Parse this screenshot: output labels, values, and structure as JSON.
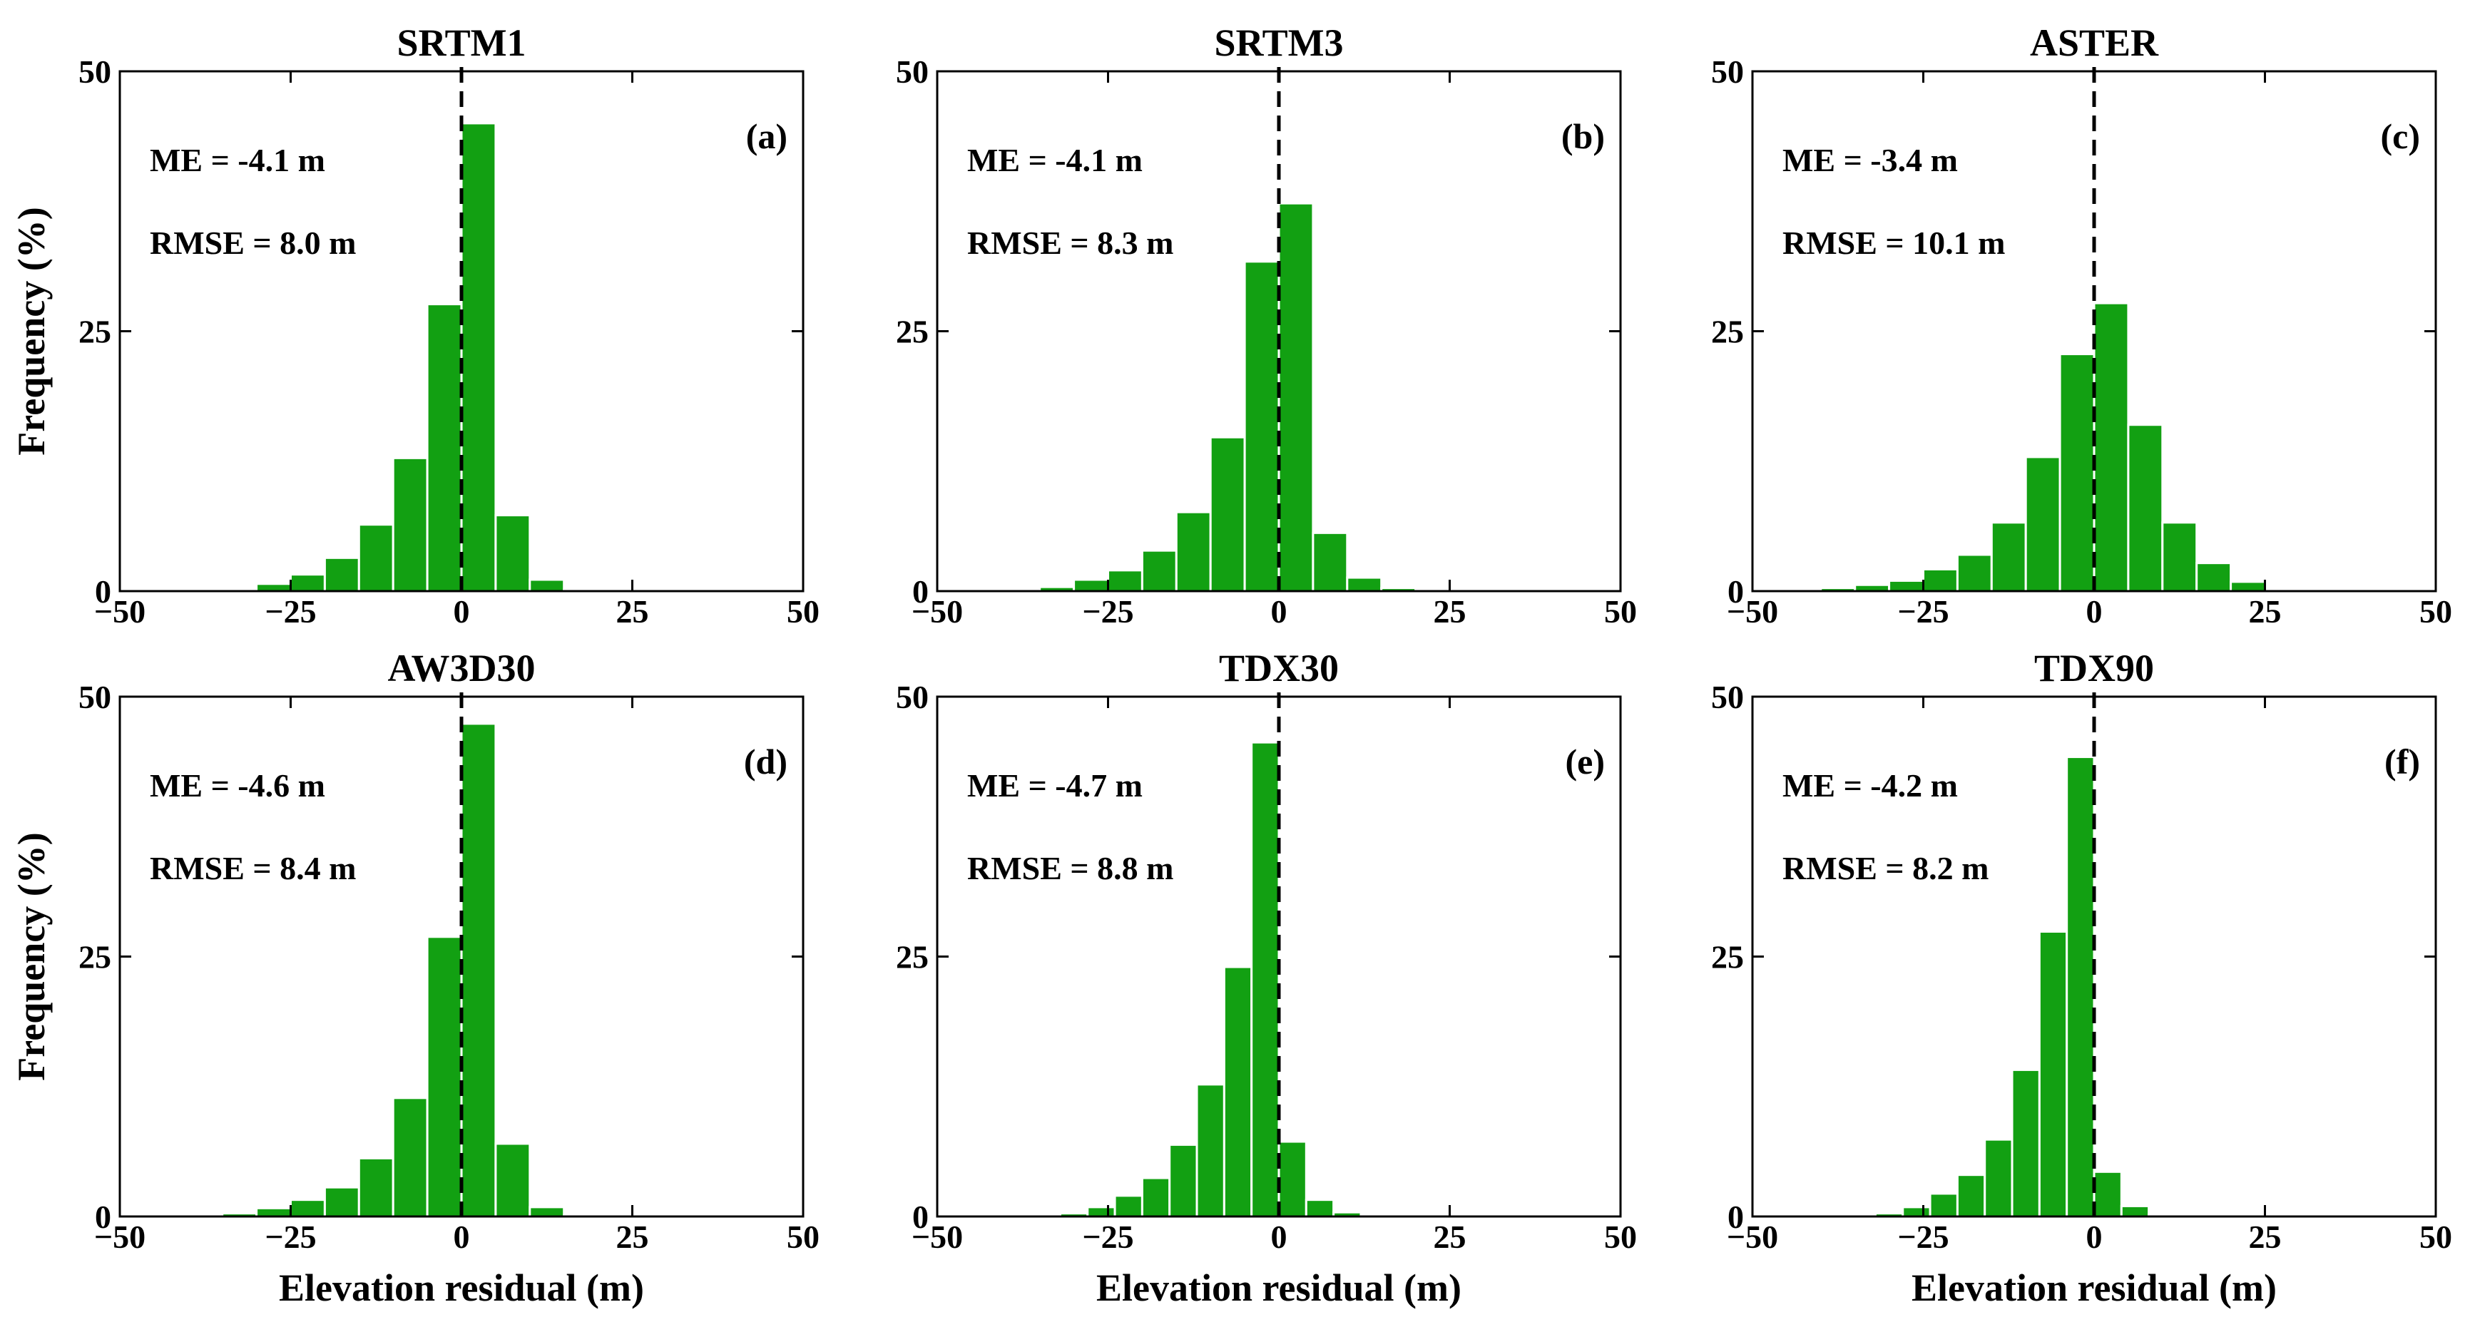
{
  "chart_data": [
    {
      "type": "bar",
      "title": "SRTM1",
      "panel_label": "(a)",
      "annotations": [
        "ME = -4.1 m",
        "RMSE = 8.0 m"
      ],
      "xlabel": "",
      "ylabel": "Frequency (%)",
      "xlim": [
        -50,
        50
      ],
      "ylim": [
        0,
        50
      ],
      "xticks": [
        -50,
        -25,
        0,
        25,
        50
      ],
      "yticks": [
        0,
        25,
        50
      ],
      "xtick_labels": [
        "−50",
        "−25",
        "0",
        "25",
        "50"
      ],
      "ytick_labels": [
        "0",
        "25",
        "50"
      ],
      "bin_width": 5,
      "bin_centers": [
        -37.5,
        -32.5,
        -27.5,
        -22.5,
        -17.5,
        -12.5,
        -7.5,
        -2.5,
        2.5,
        7.5,
        12.5,
        17.5,
        22.5
      ],
      "values": [
        0.1,
        0.2,
        0.7,
        1.6,
        3.2,
        6.4,
        12.8,
        27.6,
        45.0,
        7.3,
        1.1,
        0.1,
        0.0
      ],
      "mean_line_x": 0
    },
    {
      "type": "bar",
      "title": "SRTM3",
      "panel_label": "(b)",
      "annotations": [
        "ME = -4.1 m",
        "RMSE = 8.3 m"
      ],
      "xlabel": "",
      "ylabel": "",
      "xlim": [
        -50,
        50
      ],
      "ylim": [
        0,
        50
      ],
      "xticks": [
        -50,
        -25,
        0,
        25,
        50
      ],
      "yticks": [
        0,
        25,
        50
      ],
      "xtick_labels": [
        "−50",
        "−25",
        "0",
        "25",
        "50"
      ],
      "ytick_labels": [
        "0",
        "25",
        "50"
      ],
      "bin_width": 5,
      "bin_centers": [
        -37.5,
        -32.5,
        -27.5,
        -22.5,
        -17.5,
        -12.5,
        -7.5,
        -2.5,
        2.5,
        7.5,
        12.5,
        17.5,
        22.5
      ],
      "values": [
        0.1,
        0.4,
        1.1,
        2.0,
        3.9,
        7.6,
        14.8,
        31.7,
        37.3,
        5.6,
        1.3,
        0.3,
        0.0
      ],
      "mean_line_x": 0
    },
    {
      "type": "bar",
      "title": "ASTER",
      "panel_label": "(c)",
      "annotations": [
        "ME = -3.4 m",
        "RMSE = 10.1 m"
      ],
      "xlabel": "",
      "ylabel": "",
      "xlim": [
        -50,
        50
      ],
      "ylim": [
        0,
        50
      ],
      "xticks": [
        -50,
        -25,
        0,
        25,
        50
      ],
      "yticks": [
        0,
        25,
        50
      ],
      "xtick_labels": [
        "−50",
        "−25",
        "0",
        "25",
        "50"
      ],
      "ytick_labels": [
        "0",
        "25",
        "50"
      ],
      "bin_width": 5,
      "bin_centers": [
        -42.5,
        -37.5,
        -32.5,
        -27.5,
        -22.5,
        -17.5,
        -12.5,
        -7.5,
        -2.5,
        2.5,
        7.5,
        12.5,
        17.5,
        22.5,
        27.5
      ],
      "values": [
        0.1,
        0.3,
        0.6,
        1.0,
        2.1,
        3.5,
        6.6,
        12.9,
        22.8,
        27.7,
        16.0,
        6.6,
        2.7,
        0.9,
        0.2
      ],
      "mean_line_x": 0
    },
    {
      "type": "bar",
      "title": "AW3D30",
      "panel_label": "(d)",
      "annotations": [
        "ME = -4.6 m",
        "RMSE = 8.4 m"
      ],
      "xlabel": "Elevation residual (m)",
      "ylabel": "Frequency (%)",
      "xlim": [
        -50,
        50
      ],
      "ylim": [
        0,
        50
      ],
      "xticks": [
        -50,
        -25,
        0,
        25,
        50
      ],
      "yticks": [
        0,
        25,
        50
      ],
      "xtick_labels": [
        "−50",
        "−25",
        "0",
        "25",
        "50"
      ],
      "ytick_labels": [
        "0",
        "25",
        "50"
      ],
      "bin_width": 5,
      "bin_centers": [
        -37.5,
        -32.5,
        -27.5,
        -22.5,
        -17.5,
        -12.5,
        -7.5,
        -2.5,
        2.5,
        7.5,
        12.5,
        17.5,
        22.5
      ],
      "values": [
        0.1,
        0.3,
        0.8,
        1.6,
        2.8,
        5.6,
        11.4,
        26.9,
        47.4,
        7.0,
        0.9,
        0.1,
        0.0
      ],
      "mean_line_x": 0
    },
    {
      "type": "bar",
      "title": "TDX30",
      "panel_label": "(e)",
      "annotations": [
        "ME = -4.7 m",
        "RMSE = 8.8 m"
      ],
      "xlabel": "Elevation residual (m)",
      "ylabel": "",
      "xlim": [
        -50,
        50
      ],
      "ylim": [
        0,
        50
      ],
      "xticks": [
        -50,
        -25,
        0,
        25,
        50
      ],
      "yticks": [
        0,
        25,
        50
      ],
      "xtick_labels": [
        "−50",
        "−25",
        "0",
        "25",
        "50"
      ],
      "ytick_labels": [
        "0",
        "25",
        "50"
      ],
      "bin_width": 4,
      "bin_centers": [
        -34,
        -30,
        -26,
        -22,
        -18,
        -14,
        -10,
        -6,
        -2,
        2,
        6,
        10,
        14
      ],
      "values": [
        0.1,
        0.3,
        0.9,
        2.0,
        3.7,
        6.9,
        12.7,
        24.0,
        45.6,
        7.2,
        1.6,
        0.4,
        0.1
      ],
      "mean_line_x": 0
    },
    {
      "type": "bar",
      "title": "TDX90",
      "panel_label": "(f)",
      "annotations": [
        "ME = -4.2 m",
        "RMSE = 8.2 m"
      ],
      "xlabel": "Elevation residual (m)",
      "ylabel": "",
      "xlim": [
        -50,
        50
      ],
      "ylim": [
        0,
        50
      ],
      "xticks": [
        -50,
        -25,
        0,
        25,
        50
      ],
      "yticks": [
        0,
        25,
        50
      ],
      "xtick_labels": [
        "−50",
        "−25",
        "0",
        "25",
        "50"
      ],
      "ytick_labels": [
        "0",
        "25",
        "50"
      ],
      "bin_width": 4,
      "bin_centers": [
        -34,
        -30,
        -26,
        -22,
        -18,
        -14,
        -10,
        -6,
        -2,
        2,
        6,
        10,
        14
      ],
      "values": [
        0.1,
        0.3,
        0.9,
        2.2,
        4.0,
        7.4,
        14.1,
        27.4,
        44.2,
        4.3,
        1.0,
        0.2,
        0.0
      ],
      "mean_line_x": 0
    }
  ],
  "colors": {
    "bar_fill": "#12A012",
    "bar_edge": "#ffffff",
    "axis": "#000000",
    "mean_line": "#000000"
  }
}
